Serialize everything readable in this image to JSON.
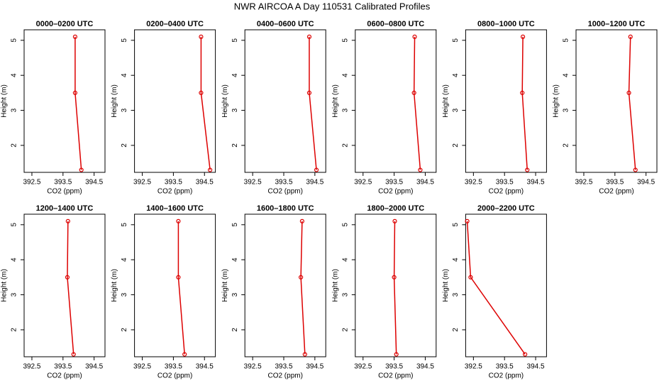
{
  "title": "NWR AIRCOA A  Day 110531  Calibrated Profiles",
  "chart_data": [
    {
      "type": "line",
      "title": "0000–0200 UTC",
      "xlabel": "CO2 (ppm)",
      "ylabel": "Height (m)",
      "color": "#dd0000",
      "x": [
        393.89,
        393.89,
        394.09
      ],
      "y": [
        5.1,
        3.5,
        1.3
      ],
      "xlim": [
        392.25,
        394.85
      ],
      "ylim": [
        1.23,
        5.3
      ],
      "xticks": [
        392.5,
        393.5,
        394.5
      ],
      "yticks": [
        2,
        3,
        4,
        5
      ]
    },
    {
      "type": "line",
      "title": "0200–0400 UTC",
      "xlabel": "CO2 (ppm)",
      "ylabel": "Height (m)",
      "color": "#dd0000",
      "x": [
        394.39,
        394.39,
        394.68
      ],
      "y": [
        5.1,
        3.5,
        1.3
      ],
      "xlim": [
        392.25,
        394.85
      ],
      "ylim": [
        1.23,
        5.3
      ],
      "xticks": [
        392.5,
        393.5,
        394.5
      ],
      "yticks": [
        2,
        3,
        4,
        5
      ]
    },
    {
      "type": "line",
      "title": "0400–0600 UTC",
      "xlabel": "CO2 (ppm)",
      "ylabel": "Height (m)",
      "color": "#dd0000",
      "x": [
        394.32,
        394.32,
        394.55
      ],
      "y": [
        5.1,
        3.5,
        1.3
      ],
      "xlim": [
        392.25,
        394.85
      ],
      "ylim": [
        1.23,
        5.3
      ],
      "xticks": [
        392.5,
        393.5,
        394.5
      ],
      "yticks": [
        2,
        3,
        4,
        5
      ]
    },
    {
      "type": "line",
      "title": "0600–0800 UTC",
      "xlabel": "CO2 (ppm)",
      "ylabel": "Height (m)",
      "color": "#dd0000",
      "x": [
        394.16,
        394.14,
        394.34
      ],
      "y": [
        5.1,
        3.5,
        1.3
      ],
      "xlim": [
        392.25,
        394.85
      ],
      "ylim": [
        1.23,
        5.3
      ],
      "xticks": [
        392.5,
        393.5,
        394.5
      ],
      "yticks": [
        2,
        3,
        4,
        5
      ]
    },
    {
      "type": "line",
      "title": "0800–1000 UTC",
      "xlabel": "CO2 (ppm)",
      "ylabel": "Height (m)",
      "color": "#dd0000",
      "x": [
        394.09,
        394.07,
        394.23
      ],
      "y": [
        5.1,
        3.5,
        1.3
      ],
      "xlim": [
        392.25,
        394.85
      ],
      "ylim": [
        1.23,
        5.3
      ],
      "xticks": [
        392.5,
        393.5,
        394.5
      ],
      "yticks": [
        2,
        3,
        4,
        5
      ]
    },
    {
      "type": "line",
      "title": "1000–1200 UTC",
      "xlabel": "CO2 (ppm)",
      "ylabel": "Height (m)",
      "color": "#dd0000",
      "x": [
        394.0,
        393.95,
        394.16
      ],
      "y": [
        5.1,
        3.5,
        1.3
      ],
      "xlim": [
        392.25,
        394.85
      ],
      "ylim": [
        1.23,
        5.3
      ],
      "xticks": [
        392.5,
        393.5,
        394.5
      ],
      "yticks": [
        2,
        3,
        4,
        5
      ]
    },
    {
      "type": "line",
      "title": "1200–1400 UTC",
      "xlabel": "CO2 (ppm)",
      "ylabel": "Height (m)",
      "color": "#dd0000",
      "x": [
        393.66,
        393.64,
        393.84
      ],
      "y": [
        5.1,
        3.5,
        1.3
      ],
      "xlim": [
        392.25,
        394.85
      ],
      "ylim": [
        1.23,
        5.3
      ],
      "xticks": [
        392.5,
        393.5,
        394.5
      ],
      "yticks": [
        2,
        3,
        4,
        5
      ]
    },
    {
      "type": "line",
      "title": "1400–1600 UTC",
      "xlabel": "CO2 (ppm)",
      "ylabel": "Height (m)",
      "color": "#dd0000",
      "x": [
        393.66,
        393.66,
        393.86
      ],
      "y": [
        5.1,
        3.5,
        1.3
      ],
      "xlim": [
        392.25,
        394.85
      ],
      "ylim": [
        1.23,
        5.3
      ],
      "xticks": [
        392.5,
        393.5,
        394.5
      ],
      "yticks": [
        2,
        3,
        4,
        5
      ]
    },
    {
      "type": "line",
      "title": "1600–1800 UTC",
      "xlabel": "CO2 (ppm)",
      "ylabel": "Height (m)",
      "color": "#dd0000",
      "x": [
        394.09,
        394.05,
        394.18
      ],
      "y": [
        5.1,
        3.5,
        1.3
      ],
      "xlim": [
        392.25,
        394.85
      ],
      "ylim": [
        1.23,
        5.3
      ],
      "xticks": [
        392.5,
        393.5,
        394.5
      ],
      "yticks": [
        2,
        3,
        4,
        5
      ]
    },
    {
      "type": "line",
      "title": "1800–2000 UTC",
      "xlabel": "CO2 (ppm)",
      "ylabel": "Height (m)",
      "color": "#dd0000",
      "x": [
        393.52,
        393.5,
        393.57
      ],
      "y": [
        5.1,
        3.5,
        1.3
      ],
      "xlim": [
        392.25,
        394.85
      ],
      "ylim": [
        1.23,
        5.3
      ],
      "xticks": [
        392.5,
        393.5,
        394.5
      ],
      "yticks": [
        2,
        3,
        4,
        5
      ]
    },
    {
      "type": "line",
      "title": "2000–2200 UTC",
      "xlabel": "CO2 (ppm)",
      "ylabel": "Height (m)",
      "color": "#dd0000",
      "x": [
        392.3,
        392.41,
        394.16
      ],
      "y": [
        5.1,
        3.5,
        1.3
      ],
      "xlim": [
        392.25,
        394.85
      ],
      "ylim": [
        1.23,
        5.3
      ],
      "xticks": [
        392.5,
        393.5,
        394.5
      ],
      "yticks": [
        2,
        3,
        4,
        5
      ]
    }
  ]
}
